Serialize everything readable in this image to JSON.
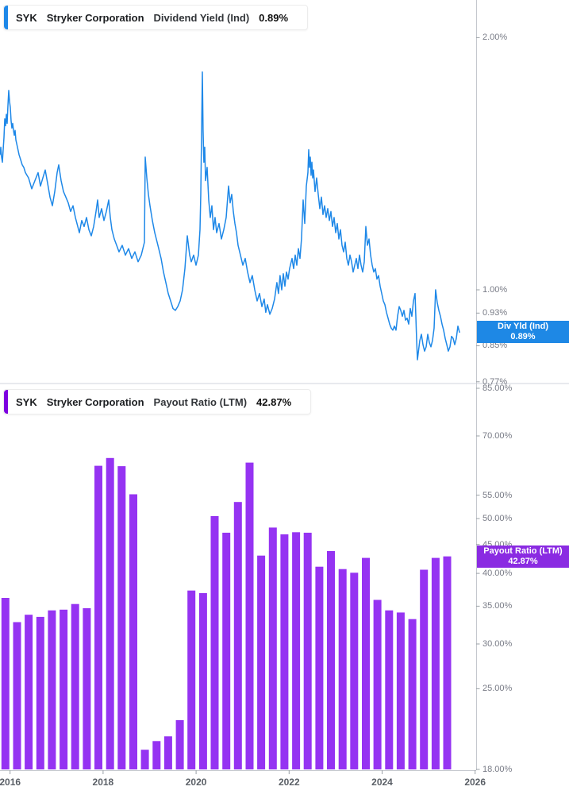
{
  "page": {
    "background": "#ffffff"
  },
  "panels": [
    {
      "header": {
        "ticker": "SYK",
        "company": "Stryker Corporation",
        "metric": "Dividend Yield (Ind)",
        "value": "0.89%"
      },
      "accent_color": "#1E88E8",
      "badge": {
        "label": "Div Yld (Ind)",
        "value_text": "0.89%",
        "value": 0.89,
        "color": "#1E88E5"
      },
      "y_ticks": [
        "2.00%",
        "1.00%",
        "0.93%",
        "0.85%",
        "0.77%"
      ]
    },
    {
      "header": {
        "ticker": "SYK",
        "company": "Stryker Corporation",
        "metric": "Payout Ratio (LTM)",
        "value": "42.87%"
      },
      "accent_color": "#7D00E0",
      "badge": {
        "label": "Payout Ratio (LTM)",
        "value_text": "42.87%",
        "value": 42.87,
        "color": "#8A2BE2"
      },
      "y_ticks": [
        "85.00%",
        "70.00%",
        "55.00%",
        "50.00%",
        "45.00%",
        "40.00%",
        "35.00%",
        "30.00%",
        "25.00%",
        "18.00%"
      ]
    }
  ],
  "x_axis": {
    "tick_labels": [
      "2016",
      "2018",
      "2020",
      "2022",
      "2024",
      "2026"
    ]
  },
  "chart_data": [
    {
      "type": "line",
      "title": "SYK Stryker Corporation Dividend Yield (Ind)",
      "name": "Dividend Yield (Ind)",
      "unit": "%",
      "color": "#1E88E8",
      "yscale": "log",
      "ylim": [
        0.77,
        2.22
      ],
      "x_unit": "decimal_year",
      "legend_position": "right-axis-badge",
      "grid": false,
      "points": [
        [
          2015.783,
          1.45
        ],
        [
          2015.8,
          1.48
        ],
        [
          2015.817,
          1.44
        ],
        [
          2015.834,
          1.42
        ],
        [
          2015.852,
          1.47
        ],
        [
          2015.869,
          1.52
        ],
        [
          2015.886,
          1.6
        ],
        [
          2015.903,
          1.57
        ],
        [
          2015.92,
          1.62
        ],
        [
          2015.937,
          1.58
        ],
        [
          2015.954,
          1.66
        ],
        [
          2015.971,
          1.73
        ],
        [
          2015.988,
          1.68
        ],
        [
          2016.005,
          1.65
        ],
        [
          2016.022,
          1.59
        ],
        [
          2016.039,
          1.56
        ],
        [
          2016.056,
          1.58
        ],
        [
          2016.073,
          1.55
        ],
        [
          2016.09,
          1.53
        ],
        [
          2016.108,
          1.55
        ],
        [
          2016.125,
          1.51
        ],
        [
          2016.159,
          1.48
        ],
        [
          2016.193,
          1.45
        ],
        [
          2016.227,
          1.43
        ],
        [
          2016.261,
          1.41
        ],
        [
          2016.295,
          1.4
        ],
        [
          2016.329,
          1.38
        ],
        [
          2016.363,
          1.37
        ],
        [
          2016.398,
          1.36
        ],
        [
          2016.432,
          1.34
        ],
        [
          2016.466,
          1.32
        ],
        [
          2016.534,
          1.35
        ],
        [
          2016.602,
          1.38
        ],
        [
          2016.654,
          1.33
        ],
        [
          2016.705,
          1.36
        ],
        [
          2016.756,
          1.39
        ],
        [
          2016.807,
          1.34
        ],
        [
          2016.858,
          1.29
        ],
        [
          2016.91,
          1.26
        ],
        [
          2016.961,
          1.31
        ],
        [
          2017.012,
          1.38
        ],
        [
          2017.046,
          1.41
        ],
        [
          2017.097,
          1.35
        ],
        [
          2017.148,
          1.31
        ],
        [
          2017.2,
          1.29
        ],
        [
          2017.251,
          1.27
        ],
        [
          2017.302,
          1.24
        ],
        [
          2017.353,
          1.26
        ],
        [
          2017.404,
          1.22
        ],
        [
          2017.456,
          1.19
        ],
        [
          2017.49,
          1.17
        ],
        [
          2017.541,
          1.21
        ],
        [
          2017.592,
          1.19
        ],
        [
          2017.643,
          1.22
        ],
        [
          2017.695,
          1.18
        ],
        [
          2017.746,
          1.16
        ],
        [
          2017.797,
          1.19
        ],
        [
          2017.848,
          1.24
        ],
        [
          2017.882,
          1.28
        ],
        [
          2017.916,
          1.22
        ],
        [
          2017.968,
          1.25
        ],
        [
          2018.019,
          1.21
        ],
        [
          2018.07,
          1.24
        ],
        [
          2018.121,
          1.28
        ],
        [
          2018.155,
          1.22
        ],
        [
          2018.189,
          1.18
        ],
        [
          2018.241,
          1.15
        ],
        [
          2018.292,
          1.13
        ],
        [
          2018.343,
          1.11
        ],
        [
          2018.411,
          1.13
        ],
        [
          2018.48,
          1.1
        ],
        [
          2018.548,
          1.12
        ],
        [
          2018.616,
          1.09
        ],
        [
          2018.684,
          1.11
        ],
        [
          2018.753,
          1.08
        ],
        [
          2018.821,
          1.1
        ],
        [
          2018.889,
          1.14
        ],
        [
          2018.906,
          1.44
        ],
        [
          2018.94,
          1.36
        ],
        [
          2018.974,
          1.3
        ],
        [
          2019.009,
          1.26
        ],
        [
          2019.06,
          1.21
        ],
        [
          2019.111,
          1.17
        ],
        [
          2019.162,
          1.14
        ],
        [
          2019.196,
          1.12
        ],
        [
          2019.247,
          1.09
        ],
        [
          2019.299,
          1.05
        ],
        [
          2019.35,
          1.02
        ],
        [
          2019.401,
          0.99
        ],
        [
          2019.452,
          0.97
        ],
        [
          2019.503,
          0.95
        ],
        [
          2019.554,
          0.945
        ],
        [
          2019.606,
          0.955
        ],
        [
          2019.657,
          0.97
        ],
        [
          2019.708,
          1.0
        ],
        [
          2019.759,
          1.06
        ],
        [
          2019.81,
          1.16
        ],
        [
          2019.861,
          1.1
        ],
        [
          2019.896,
          1.08
        ],
        [
          2019.947,
          1.1
        ],
        [
          2019.998,
          1.07
        ],
        [
          2020.049,
          1.1
        ],
        [
          2020.083,
          1.18
        ],
        [
          2020.1,
          1.3
        ],
        [
          2020.134,
          1.82
        ],
        [
          2020.151,
          1.55
        ],
        [
          2020.168,
          1.42
        ],
        [
          2020.186,
          1.48
        ],
        [
          2020.203,
          1.35
        ],
        [
          2020.237,
          1.4
        ],
        [
          2020.271,
          1.28
        ],
        [
          2020.305,
          1.22
        ],
        [
          2020.339,
          1.26
        ],
        [
          2020.373,
          1.18
        ],
        [
          2020.408,
          1.22
        ],
        [
          2020.442,
          1.17
        ],
        [
          2020.493,
          1.2
        ],
        [
          2020.544,
          1.15
        ],
        [
          2020.595,
          1.18
        ],
        [
          2020.646,
          1.22
        ],
        [
          2020.698,
          1.33
        ],
        [
          2020.732,
          1.27
        ],
        [
          2020.766,
          1.3
        ],
        [
          2020.8,
          1.24
        ],
        [
          2020.834,
          1.2
        ],
        [
          2020.868,
          1.17
        ],
        [
          2020.902,
          1.13
        ],
        [
          2020.954,
          1.1
        ],
        [
          2021.005,
          1.07
        ],
        [
          2021.056,
          1.09
        ],
        [
          2021.107,
          1.05
        ],
        [
          2021.158,
          1.02
        ],
        [
          2021.209,
          1.04
        ],
        [
          2021.261,
          1.0
        ],
        [
          2021.312,
          0.97
        ],
        [
          2021.363,
          0.99
        ],
        [
          2021.414,
          0.955
        ],
        [
          2021.465,
          0.975
        ],
        [
          2021.499,
          0.94
        ],
        [
          2021.534,
          0.96
        ],
        [
          2021.585,
          0.935
        ],
        [
          2021.636,
          0.95
        ],
        [
          2021.687,
          0.975
        ],
        [
          2021.738,
          1.02
        ],
        [
          2021.772,
          0.99
        ],
        [
          2021.806,
          1.04
        ],
        [
          2021.841,
          1.0
        ],
        [
          2021.875,
          1.045
        ],
        [
          2021.909,
          1.01
        ],
        [
          2021.943,
          1.05
        ],
        [
          2021.977,
          1.03
        ],
        [
          2022.011,
          1.06
        ],
        [
          2022.063,
          1.09
        ],
        [
          2022.097,
          1.06
        ],
        [
          2022.131,
          1.1
        ],
        [
          2022.165,
          1.07
        ],
        [
          2022.199,
          1.12
        ],
        [
          2022.233,
          1.09
        ],
        [
          2022.267,
          1.15
        ],
        [
          2022.302,
          1.28
        ],
        [
          2022.336,
          1.2
        ],
        [
          2022.37,
          1.33
        ],
        [
          2022.404,
          1.38
        ],
        [
          2022.421,
          1.47
        ],
        [
          2022.438,
          1.4
        ],
        [
          2022.455,
          1.44
        ],
        [
          2022.472,
          1.37
        ],
        [
          2022.489,
          1.42
        ],
        [
          2022.507,
          1.36
        ],
        [
          2022.524,
          1.39
        ],
        [
          2022.558,
          1.31
        ],
        [
          2022.592,
          1.36
        ],
        [
          2022.626,
          1.3
        ],
        [
          2022.66,
          1.25
        ],
        [
          2022.694,
          1.29
        ],
        [
          2022.729,
          1.23
        ],
        [
          2022.763,
          1.26
        ],
        [
          2022.797,
          1.22
        ],
        [
          2022.831,
          1.25
        ],
        [
          2022.865,
          1.21
        ],
        [
          2022.899,
          1.24
        ],
        [
          2022.933,
          1.19
        ],
        [
          2022.967,
          1.22
        ],
        [
          2023.002,
          1.17
        ],
        [
          2023.036,
          1.2
        ],
        [
          2023.07,
          1.15
        ],
        [
          2023.104,
          1.18
        ],
        [
          2023.138,
          1.13
        ],
        [
          2023.172,
          1.11
        ],
        [
          2023.206,
          1.14
        ],
        [
          2023.24,
          1.09
        ],
        [
          2023.275,
          1.07
        ],
        [
          2023.309,
          1.1
        ],
        [
          2023.343,
          1.08
        ],
        [
          2023.377,
          1.05
        ],
        [
          2023.411,
          1.07
        ],
        [
          2023.445,
          1.09
        ],
        [
          2023.479,
          1.06
        ],
        [
          2023.513,
          1.1
        ],
        [
          2023.548,
          1.07
        ],
        [
          2023.582,
          1.05
        ],
        [
          2023.616,
          1.08
        ],
        [
          2023.65,
          1.19
        ],
        [
          2023.684,
          1.13
        ],
        [
          2023.718,
          1.15
        ],
        [
          2023.752,
          1.1
        ],
        [
          2023.786,
          1.07
        ],
        [
          2023.821,
          1.05
        ],
        [
          2023.855,
          1.06
        ],
        [
          2023.889,
          1.03
        ],
        [
          2023.923,
          1.04
        ],
        [
          2023.957,
          1.01
        ],
        [
          2023.991,
          0.99
        ],
        [
          2024.025,
          0.97
        ],
        [
          2024.059,
          0.96
        ],
        [
          2024.094,
          0.94
        ],
        [
          2024.128,
          0.925
        ],
        [
          2024.162,
          0.91
        ],
        [
          2024.196,
          0.9
        ],
        [
          2024.23,
          0.895
        ],
        [
          2024.264,
          0.905
        ],
        [
          2024.298,
          0.895
        ],
        [
          2024.332,
          0.93
        ],
        [
          2024.367,
          0.955
        ],
        [
          2024.401,
          0.945
        ],
        [
          2024.435,
          0.93
        ],
        [
          2024.469,
          0.945
        ],
        [
          2024.503,
          0.92
        ],
        [
          2024.537,
          0.925
        ],
        [
          2024.571,
          0.91
        ],
        [
          2024.605,
          0.95
        ],
        [
          2024.64,
          0.93
        ],
        [
          2024.674,
          0.97
        ],
        [
          2024.708,
          0.99
        ],
        [
          2024.725,
          0.93
        ],
        [
          2024.742,
          0.87
        ],
        [
          2024.759,
          0.825
        ],
        [
          2024.776,
          0.84
        ],
        [
          2024.81,
          0.87
        ],
        [
          2024.844,
          0.885
        ],
        [
          2024.878,
          0.86
        ],
        [
          2024.913,
          0.845
        ],
        [
          2024.947,
          0.855
        ],
        [
          2024.981,
          0.885
        ],
        [
          2025.015,
          0.865
        ],
        [
          2025.049,
          0.855
        ],
        [
          2025.083,
          0.87
        ],
        [
          2025.117,
          0.9
        ],
        [
          2025.151,
          1.0
        ],
        [
          2025.186,
          0.965
        ],
        [
          2025.22,
          0.945
        ],
        [
          2025.254,
          0.93
        ],
        [
          2025.288,
          0.91
        ],
        [
          2025.322,
          0.895
        ],
        [
          2025.356,
          0.875
        ],
        [
          2025.39,
          0.86
        ],
        [
          2025.424,
          0.845
        ],
        [
          2025.459,
          0.855
        ],
        [
          2025.493,
          0.88
        ],
        [
          2025.527,
          0.875
        ],
        [
          2025.561,
          0.86
        ],
        [
          2025.595,
          0.875
        ],
        [
          2025.629,
          0.905
        ],
        [
          2025.663,
          0.89
        ]
      ],
      "last_value": 0.89
    },
    {
      "type": "bar",
      "title": "SYK Stryker Corporation Payout Ratio (LTM)",
      "name": "Payout Ratio (LTM)",
      "unit": "%",
      "color": "#9533F2",
      "yscale": "log",
      "ylim": [
        18,
        86.7
      ],
      "x_unit": "decimal_year",
      "start_period": "2015-Q4",
      "interval": "quarter",
      "start_year": 2015.9,
      "interval_years": 0.25,
      "values": [
        36.2,
        32.8,
        33.8,
        33.5,
        34.4,
        34.5,
        35.3,
        34.7,
        62.0,
        64.0,
        61.9,
        55.2,
        19.5,
        20.2,
        20.6,
        22.0,
        37.3,
        36.9,
        50.5,
        47.2,
        53.5,
        62.8,
        43.0,
        48.2,
        46.9,
        47.3,
        47.2,
        41.1,
        43.8,
        40.7,
        40.1,
        42.6,
        35.9,
        34.4,
        34.1,
        33.2,
        40.6,
        42.6,
        42.87
      ],
      "last_value": 42.87
    }
  ]
}
